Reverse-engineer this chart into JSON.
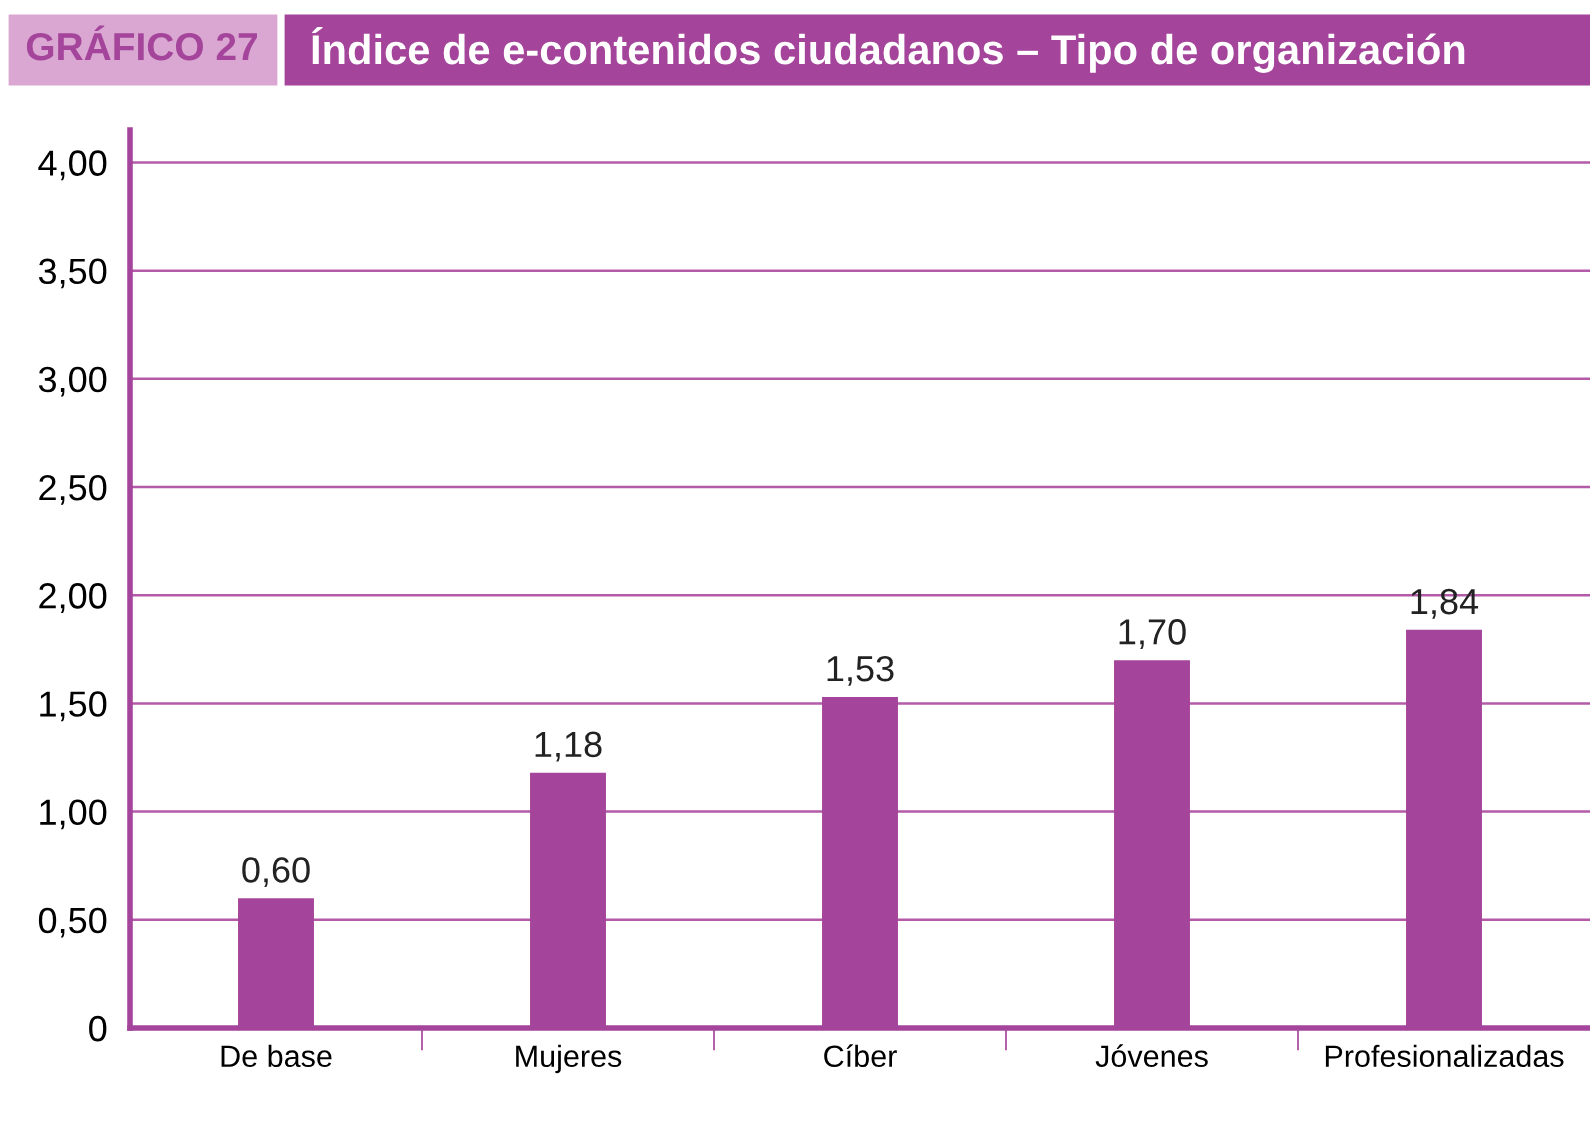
{
  "chart_data": {
    "type": "bar",
    "title": "Índice de e-contenidos ciudadanos – Tipo de organización",
    "annotations": [
      "GRÁFICO 27"
    ],
    "categories": [
      "De base",
      "Mujeres",
      "Cíber",
      "Jóvenes",
      "Profesionalizadas"
    ],
    "values": [
      0.6,
      1.18,
      1.53,
      1.7,
      1.84
    ],
    "value_labels": [
      "0,60",
      "1,18",
      "1,53",
      "1,70",
      "1,84"
    ],
    "color": "#a4449a",
    "ylim": [
      0,
      4.15
    ],
    "yticks": [
      {
        "value": 0,
        "label": "0"
      },
      {
        "value": 0.5,
        "label": "0,50"
      },
      {
        "value": 1,
        "label": "1,00"
      },
      {
        "value": 1.5,
        "label": "1,50"
      },
      {
        "value": 2,
        "label": "2,00"
      },
      {
        "value": 2.5,
        "label": "2,50"
      },
      {
        "value": 3,
        "label": "3,00"
      },
      {
        "value": 3.5,
        "label": "3,50"
      },
      {
        "value": 4,
        "label": "4,00"
      }
    ],
    "grid": "y",
    "legend": false
  }
}
